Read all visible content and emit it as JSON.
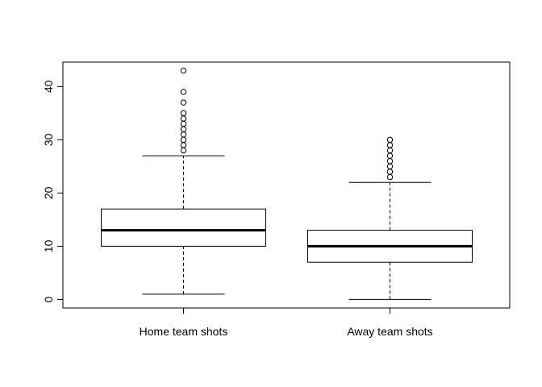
{
  "chart_data": {
    "type": "boxplot",
    "title": "",
    "xlabel": "",
    "ylabel": "",
    "ylim": [
      -1.6,
      44.6
    ],
    "y_ticks": [
      "0",
      "10",
      "20",
      "30",
      "40"
    ],
    "grid": false,
    "legend": "none",
    "categories": [
      "Home team shots",
      "Away team shots"
    ],
    "boxes": [
      {
        "label": "Home team shots",
        "whisker_low": 1,
        "q1": 10,
        "median": 13,
        "q3": 17,
        "whisker_high": 27,
        "outliers": [
          28,
          29,
          30,
          31,
          32,
          33,
          34,
          35,
          37,
          39,
          43
        ]
      },
      {
        "label": "Away team shots",
        "whisker_low": 0,
        "q1": 7,
        "median": 10,
        "q3": 13,
        "whisker_high": 22,
        "outliers": [
          23,
          24,
          25,
          26,
          27,
          28,
          29,
          30
        ]
      }
    ]
  }
}
